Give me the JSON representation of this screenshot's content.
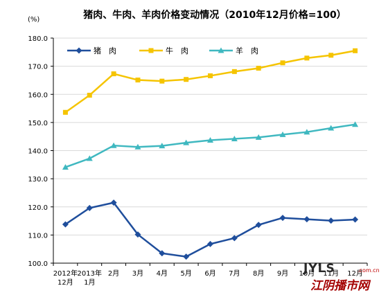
{
  "chart_data": {
    "type": "line",
    "title": "猪肉、牛肉、羊肉价格变动情况（2010年12月价格=100）",
    "unit_label": "(%)",
    "xlabel": "",
    "ylabel": "",
    "ylim": [
      100,
      180
    ],
    "yticks": [
      100,
      110,
      120,
      130,
      140,
      150,
      160,
      170,
      180
    ],
    "ytick_labels": [
      "100.0",
      "110.0",
      "120.0",
      "130.0",
      "140.0",
      "150.0",
      "160.0",
      "170.0",
      "180.0"
    ],
    "grid": true,
    "legend_position": "top",
    "categories": [
      [
        "2012年",
        "12月"
      ],
      [
        "2013年",
        "1月"
      ],
      [
        "2月"
      ],
      [
        "3月"
      ],
      [
        "4月"
      ],
      [
        "5月"
      ],
      [
        "6月"
      ],
      [
        "7月"
      ],
      [
        "8月"
      ],
      [
        "9月"
      ],
      [
        "10月"
      ],
      [
        "11月"
      ],
      [
        "12月"
      ]
    ],
    "series": [
      {
        "name": "猪　肉",
        "color": "#1F4E9C",
        "marker": "diamond",
        "values": [
          113.8,
          119.6,
          121.5,
          110.2,
          103.5,
          102.3,
          106.8,
          108.9,
          113.6,
          116.1,
          115.6,
          115.1,
          115.5
        ]
      },
      {
        "name": "牛　肉",
        "color": "#F5C400",
        "marker": "square",
        "values": [
          153.6,
          159.7,
          167.3,
          165.1,
          164.7,
          165.3,
          166.6,
          168.1,
          169.3,
          171.2,
          172.9,
          173.9,
          175.5
        ]
      },
      {
        "name": "羊　肉",
        "color": "#3FB8C0",
        "marker": "triangle",
        "values": [
          134.1,
          137.2,
          141.8,
          141.3,
          141.7,
          142.8,
          143.7,
          144.2,
          144.7,
          145.7,
          146.6,
          148.0,
          149.3
        ]
      }
    ]
  },
  "watermark": {
    "top_text": "JYLS",
    "domain_text": ".com.cn",
    "cn_text": "江阴播市网"
  }
}
